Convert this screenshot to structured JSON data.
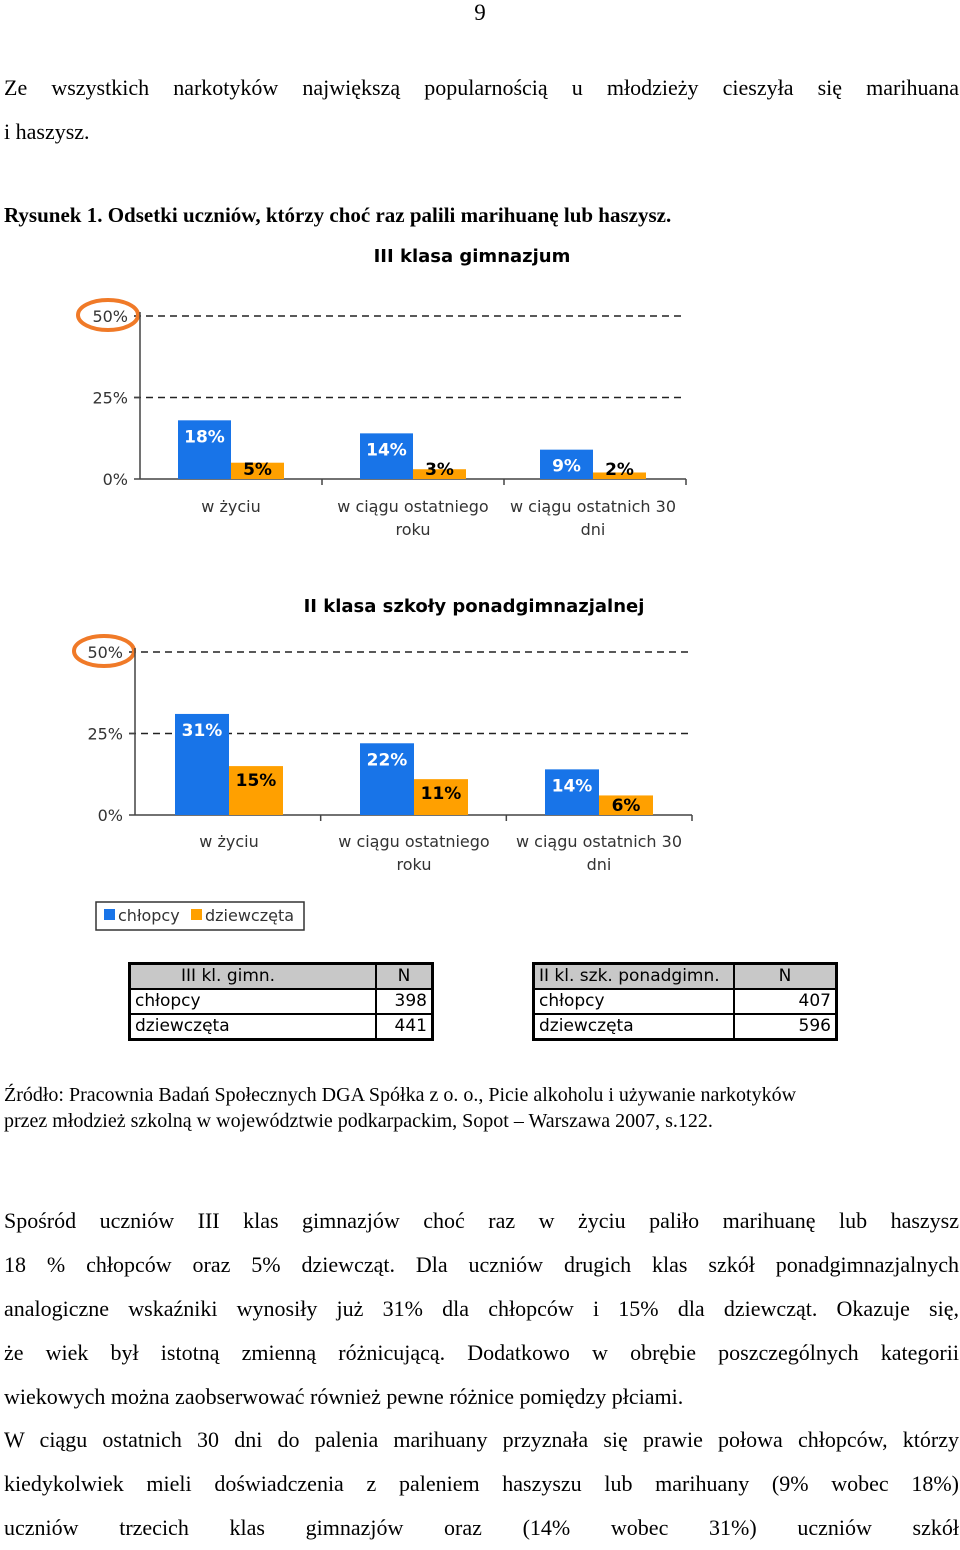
{
  "page_number": "9",
  "intro": {
    "line1": "Ze wszystkich narkotyków największą popularnością u młodzieży cieszyła się marihuana",
    "line2": "i haszysz."
  },
  "figure_caption": "Rysunek 1. Odsetki uczniów, którzy choć raz palili marihuanę lub haszysz.",
  "chart_data": [
    {
      "type": "bar",
      "title": "III klasa gimnazjum",
      "categories": [
        "w życiu",
        "w ciągu ostatniego roku",
        "w ciągu ostatnich 30 dni"
      ],
      "category_lines": [
        [
          "w życiu"
        ],
        [
          "w ciągu ostatniego",
          "roku"
        ],
        [
          "w ciągu ostatnich 30",
          "dni"
        ]
      ],
      "series": [
        {
          "name": "chłopcy",
          "values": [
            18,
            14,
            9
          ],
          "labels": [
            "18%",
            "14%",
            "9%"
          ],
          "color": "#1874e8"
        },
        {
          "name": "dziewczęta",
          "values": [
            5,
            3,
            2
          ],
          "labels": [
            "5%",
            "3%",
            "2%"
          ],
          "color": "#ffa000"
        }
      ],
      "yticks": [
        "0%",
        "25%",
        "50%"
      ],
      "ylim": [
        0,
        50
      ],
      "grid": "dashed at 25% and 50%",
      "highlight": "50% tick circled in orange"
    },
    {
      "type": "bar",
      "title": "II klasa szkoły ponadgimnazjalnej",
      "categories": [
        "w życiu",
        "w ciągu ostatniego roku",
        "w ciągu ostatnich 30 dni"
      ],
      "category_lines": [
        [
          "w życiu"
        ],
        [
          "w ciągu ostatniego",
          "roku"
        ],
        [
          "w ciągu ostatnich 30",
          "dni"
        ]
      ],
      "series": [
        {
          "name": "chłopcy",
          "values": [
            31,
            22,
            14
          ],
          "labels": [
            "31%",
            "22%",
            "14%"
          ],
          "color": "#1874e8"
        },
        {
          "name": "dziewczęta",
          "values": [
            15,
            11,
            6
          ],
          "labels": [
            "15%",
            "11%",
            "6%"
          ],
          "color": "#ffa000"
        }
      ],
      "yticks": [
        "0%",
        "25%",
        "50%"
      ],
      "ylim": [
        0,
        50
      ],
      "grid": "dashed at 25% and 50%",
      "highlight": "50% tick circled in orange"
    }
  ],
  "legend": {
    "items": [
      {
        "label": "chłopcy",
        "color": "#1874e8"
      },
      {
        "label": "dziewczęta",
        "color": "#ffa000"
      }
    ]
  },
  "tables": [
    {
      "headers": [
        "III kl. gimn.",
        "N"
      ],
      "rows": [
        [
          "chłopcy",
          "398"
        ],
        [
          "dziewczęta",
          "441"
        ]
      ]
    },
    {
      "headers": [
        "II kl. szk. ponadgimn.",
        "N"
      ],
      "rows": [
        [
          "chłopcy",
          "407"
        ],
        [
          "dziewczęta",
          "596"
        ]
      ]
    }
  ],
  "source": {
    "line1": "Źródło: Pracownia Badań Społecznych DGA Spółka z o. o., Picie alkoholu i używanie narkotyków",
    "line2": "przez młodzież szkolną w województwie podkarpackim, Sopot – Warszawa 2007, s.122."
  },
  "body": {
    "p1_lines": [
      "Spośród uczniów III klas gimnazjów choć raz w życiu paliło marihuanę lub haszysz",
      "18 % chłopców oraz 5% dziewcząt. Dla uczniów drugich klas szkół ponadgimnazjalnych",
      "analogiczne wskaźniki wynosiły już 31% dla chłopców i 15% dla dziewcząt. Okazuje się,",
      "że wiek był istotną zmienną różnicującą. Dodatkowo w obrębie poszczególnych kategorii",
      "wiekowych można zaobserwować również pewne różnice pomiędzy płciami."
    ],
    "p2_lines": [
      "W ciągu ostatnich 30 dni do palenia marihuany przyznała się prawie połowa chłopców, którzy",
      "kiedykolwiek mieli doświadczenia z paleniem haszyszu lub marihuany (9% wobec 18%)",
      "uczniów trzecich klas gimnazjów oraz (14% wobec 31%) uczniów szkół"
    ]
  }
}
